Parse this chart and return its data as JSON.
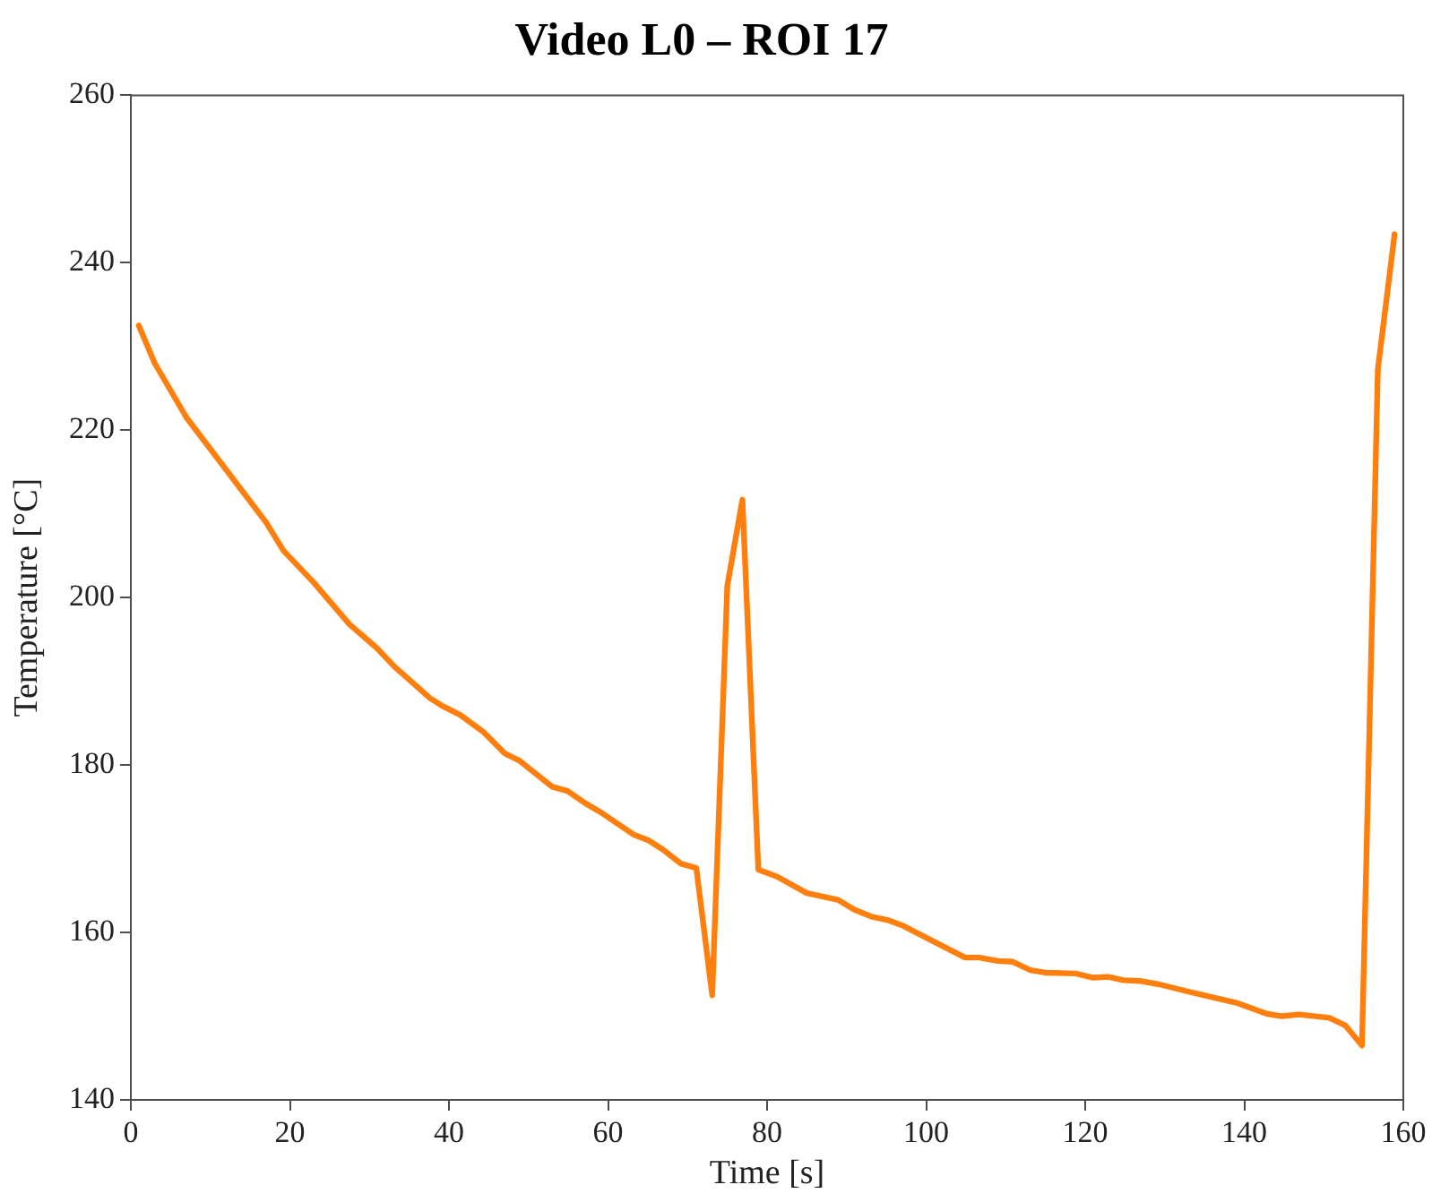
{
  "chart_data": {
    "type": "line",
    "title": "Video L0 – ROI 17",
    "xlabel": "Time [s]",
    "ylabel": "Temperature [°C]",
    "x": [
      1,
      3,
      7,
      17,
      19.2,
      23,
      27.5,
      30.9,
      33.1,
      37.6,
      39.1,
      41.4,
      44.4,
      47,
      48.9,
      53,
      54.9,
      57.2,
      59,
      63.2,
      65.1,
      66.9,
      69.2,
      71.1,
      73.1,
      75,
      76.9,
      78.9,
      81.2,
      85,
      88.9,
      91,
      93.1,
      95.1,
      97.1,
      104.9,
      106.7,
      109,
      110.9,
      113.1,
      115,
      118.8,
      121,
      122.9,
      124.8,
      127,
      129.3,
      132.7,
      134.9,
      139,
      142.8,
      144.7,
      146.9,
      150.7,
      152.7,
      154.8,
      156.8,
      158.9
    ],
    "series": [
      {
        "color": "#ff7f0e",
        "values": [
          232.5,
          228,
          221.5,
          209,
          205.6,
          201.8,
          196.8,
          194,
          191.8,
          188,
          187.1,
          186,
          183.9,
          181.4,
          180.5,
          177.4,
          176.9,
          175.4,
          174.4,
          171.7,
          171,
          169.9,
          168.2,
          167.7,
          152.5,
          201.4,
          211.7,
          167.5,
          166.7,
          164.7,
          163.9,
          162.7,
          161.9,
          161.5,
          160.8,
          157,
          157,
          156.6,
          156.5,
          155.5,
          155.2,
          155.1,
          154.6,
          154.7,
          154.3,
          154.2,
          153.8,
          153,
          152.5,
          151.6,
          150.3,
          150,
          150.2,
          149.8,
          148.9,
          146.5,
          227.3,
          243.4
        ]
      }
    ],
    "xlim": [
      0,
      160
    ],
    "xticks": [
      0,
      20,
      40,
      60,
      80,
      100,
      120,
      140,
      160
    ],
    "ylim": [
      140,
      260
    ],
    "yticks": [
      140,
      160,
      180,
      200,
      220,
      240,
      260
    ],
    "grid": false,
    "legend": false,
    "marker": "none",
    "line_style": "solid"
  }
}
